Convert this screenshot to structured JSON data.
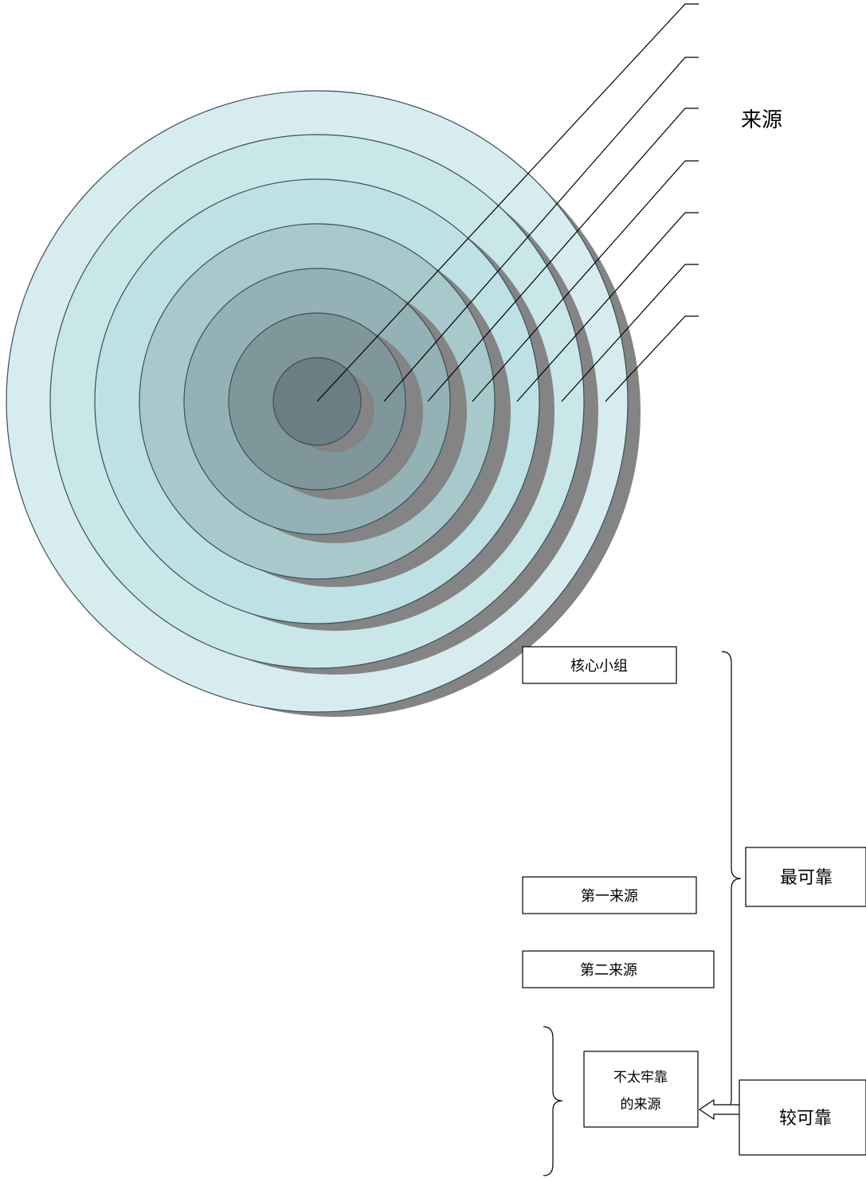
{
  "diagram": {
    "source_label": "来源",
    "ring_colors": [
      "#d7ecef",
      "#c9e6e9",
      "#bde1e4",
      "#a8c9cb",
      "#94b1b5",
      "#7f979b",
      "#6a7f83"
    ],
    "boxes": {
      "core_group": "核心小组",
      "first_source": "第一来源",
      "second_source": "第二来源",
      "most_reliable": "最可靠",
      "less_reliable_line1": "不太牢靠",
      "less_reliable_line2": "的来源",
      "more_reliable": "较可靠"
    }
  }
}
